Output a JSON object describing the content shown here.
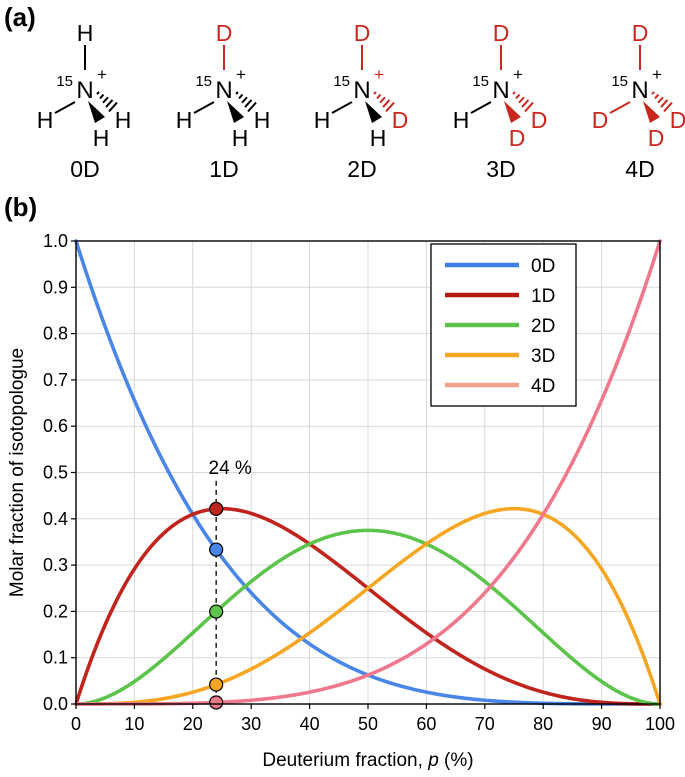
{
  "panel_a": {
    "label": "(a)",
    "isotope_mass": "15",
    "charge": "+",
    "molecules": [
      {
        "name": "0D",
        "top": "H",
        "left": "H",
        "wedge": "H",
        "hash": "H",
        "deuterated": []
      },
      {
        "name": "1D",
        "top": "D",
        "left": "H",
        "wedge": "H",
        "hash": "H",
        "deuterated": [
          "top"
        ]
      },
      {
        "name": "2D",
        "top": "D",
        "left": "H",
        "wedge": "H",
        "hash": "D",
        "deuterated": [
          "top",
          "hash"
        ]
      },
      {
        "name": "3D",
        "top": "D",
        "left": "H",
        "wedge": "D",
        "hash": "D",
        "deuterated": [
          "top",
          "hash",
          "wedge"
        ]
      },
      {
        "name": "4D",
        "top": "D",
        "left": "D",
        "wedge": "D",
        "hash": "D",
        "deuterated": [
          "top",
          "left",
          "hash",
          "wedge"
        ]
      }
    ],
    "colors": {
      "H": "#000000",
      "D": "#c8281e"
    }
  },
  "panel_b": {
    "label": "(b)",
    "marker_label": "24 %",
    "marker_x": 24
  },
  "chart_data": {
    "type": "line",
    "title": "",
    "xlabel": "Deuterium fraction, p (%)",
    "xlabel_parts": [
      "Deuterium fraction, ",
      "p",
      " (%)"
    ],
    "ylabel": "Molar fraction of isotopologue",
    "xlim": [
      0,
      100
    ],
    "ylim": [
      0,
      1.0
    ],
    "xticks": [
      0,
      10,
      20,
      30,
      40,
      50,
      60,
      70,
      80,
      90,
      100
    ],
    "yticks": [
      "0.0",
      "0.1",
      "0.2",
      "0.3",
      "0.4",
      "0.5",
      "0.6",
      "0.7",
      "0.8",
      "0.9",
      "1.0"
    ],
    "grid": true,
    "legend_position": "top-right",
    "x": [
      0,
      5,
      10,
      15,
      20,
      24,
      25,
      30,
      35,
      40,
      45,
      50,
      55,
      60,
      65,
      70,
      75,
      80,
      85,
      90,
      95,
      100
    ],
    "series": [
      {
        "name": "0D",
        "legend_color": "#3d7ee6",
        "color": "#4a86e8",
        "values": [
          1.0,
          0.8145,
          0.6561,
          0.522,
          0.4096,
          0.3336,
          0.3164,
          0.2401,
          0.1785,
          0.1296,
          0.0915,
          0.0625,
          0.041,
          0.0256,
          0.015,
          0.0081,
          0.0039,
          0.0016,
          0.0005,
          0.0001,
          0.0,
          0.0
        ]
      },
      {
        "name": "1D",
        "legend_color": "#b31c14",
        "color": "#c0241c",
        "values": [
          0.0,
          0.1715,
          0.2916,
          0.3685,
          0.4096,
          0.4214,
          0.4219,
          0.4116,
          0.3845,
          0.3456,
          0.2995,
          0.25,
          0.2005,
          0.1536,
          0.1115,
          0.0756,
          0.0469,
          0.0256,
          0.0115,
          0.0036,
          0.0005,
          0.0
        ]
      },
      {
        "name": "2D",
        "legend_color": "#5cc44a",
        "color": "#5cc44a",
        "values": [
          0.0,
          0.0135,
          0.0486,
          0.0975,
          0.1536,
          0.1996,
          0.2109,
          0.2646,
          0.3105,
          0.3456,
          0.3675,
          0.375,
          0.3675,
          0.3456,
          0.3105,
          0.2646,
          0.2109,
          0.1536,
          0.0975,
          0.0486,
          0.0135,
          0.0
        ]
      },
      {
        "name": "3D",
        "legend_color": "#f5a623",
        "color": "#f5a623",
        "values": [
          0.0,
          0.0005,
          0.0036,
          0.0115,
          0.0256,
          0.042,
          0.0469,
          0.0756,
          0.1115,
          0.1536,
          0.2005,
          0.25,
          0.2995,
          0.3456,
          0.3845,
          0.4116,
          0.4219,
          0.4096,
          0.3685,
          0.2916,
          0.1715,
          0.0
        ]
      },
      {
        "name": "4D",
        "legend_color": "#f5a08c",
        "color": "#f0788c",
        "values": [
          0.0,
          0.0,
          0.0001,
          0.0005,
          0.0016,
          0.0033,
          0.0039,
          0.0081,
          0.015,
          0.0256,
          0.041,
          0.0625,
          0.0915,
          0.1296,
          0.1785,
          0.2401,
          0.3164,
          0.4096,
          0.522,
          0.6561,
          0.8145,
          1.0
        ]
      }
    ],
    "markers": {
      "x": 24,
      "points": [
        {
          "series": "1D",
          "y": 0.4214
        },
        {
          "series": "0D",
          "y": 0.3336
        },
        {
          "series": "2D",
          "y": 0.1996
        },
        {
          "series": "3D",
          "y": 0.042
        },
        {
          "series": "4D",
          "y": 0.0033
        }
      ]
    }
  }
}
